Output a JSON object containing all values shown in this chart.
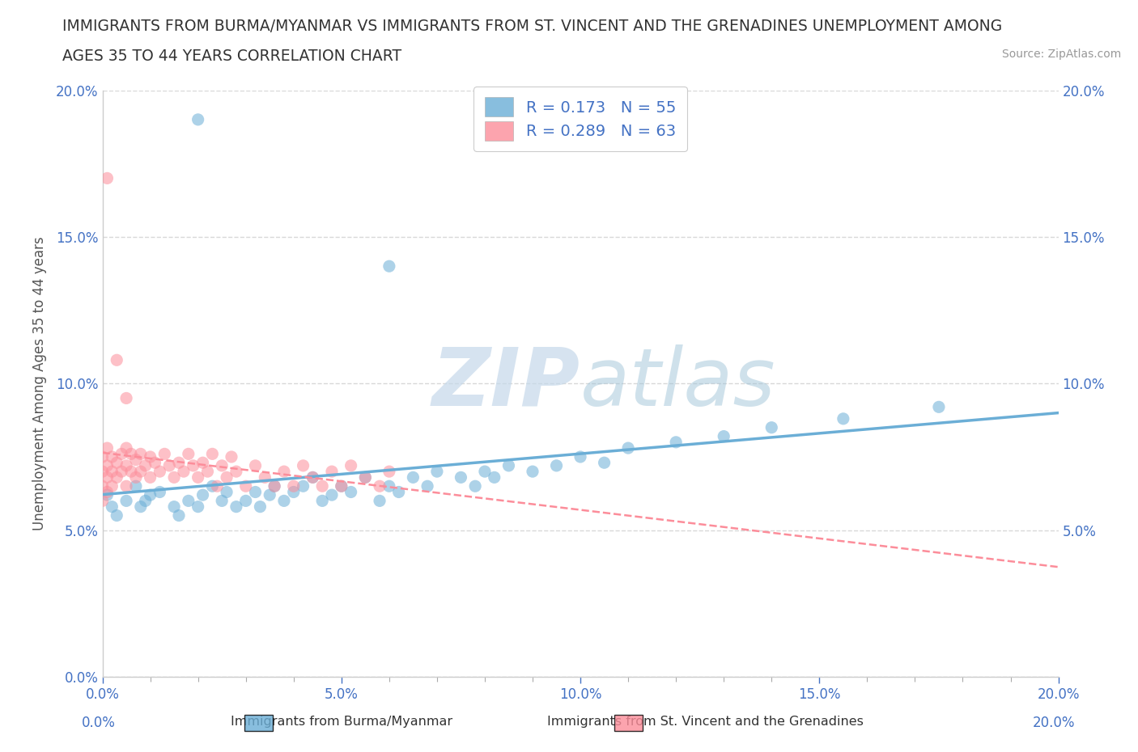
{
  "title_line1": "IMMIGRANTS FROM BURMA/MYANMAR VS IMMIGRANTS FROM ST. VINCENT AND THE GRENADINES UNEMPLOYMENT AMONG",
  "title_line2": "AGES 35 TO 44 YEARS CORRELATION CHART",
  "source": "Source: ZipAtlas.com",
  "ylabel": "Unemployment Among Ages 35 to 44 years",
  "xlim": [
    0.0,
    0.2
  ],
  "ylim": [
    0.0,
    0.2
  ],
  "series1_label": "Immigrants from Burma/Myanmar",
  "series1_color": "#6baed6",
  "series1_R": 0.173,
  "series1_N": 55,
  "series2_label": "Immigrants from St. Vincent and the Grenadines",
  "series2_color": "#fc8d9a",
  "series2_R": 0.289,
  "series2_N": 63,
  "watermark_ZIP": "ZIP",
  "watermark_atlas": "atlas",
  "background_color": "#ffffff",
  "grid_color": "#d8d8d8",
  "tick_color": "#4472c4",
  "legend_R_color": "#4472c4",
  "title_color": "#333333",
  "source_color": "#999999",
  "series1_x": [
    0.001,
    0.002,
    0.003,
    0.005,
    0.007,
    0.008,
    0.009,
    0.01,
    0.012,
    0.015,
    0.016,
    0.018,
    0.02,
    0.021,
    0.023,
    0.025,
    0.026,
    0.028,
    0.03,
    0.032,
    0.033,
    0.035,
    0.036,
    0.038,
    0.04,
    0.042,
    0.044,
    0.046,
    0.048,
    0.05,
    0.052,
    0.055,
    0.058,
    0.06,
    0.062,
    0.065,
    0.068,
    0.07,
    0.075,
    0.078,
    0.08,
    0.082,
    0.085,
    0.09,
    0.095,
    0.1,
    0.105,
    0.11,
    0.12,
    0.13,
    0.14,
    0.155,
    0.175,
    0.02,
    0.06
  ],
  "series1_y": [
    0.062,
    0.058,
    0.055,
    0.06,
    0.065,
    0.058,
    0.06,
    0.062,
    0.063,
    0.058,
    0.055,
    0.06,
    0.058,
    0.062,
    0.065,
    0.06,
    0.063,
    0.058,
    0.06,
    0.063,
    0.058,
    0.062,
    0.065,
    0.06,
    0.063,
    0.065,
    0.068,
    0.06,
    0.062,
    0.065,
    0.063,
    0.068,
    0.06,
    0.065,
    0.063,
    0.068,
    0.065,
    0.07,
    0.068,
    0.065,
    0.07,
    0.068,
    0.072,
    0.07,
    0.072,
    0.075,
    0.073,
    0.078,
    0.08,
    0.082,
    0.085,
    0.088,
    0.092,
    0.19,
    0.14
  ],
  "series2_x": [
    0.0,
    0.0,
    0.0,
    0.0,
    0.001,
    0.001,
    0.001,
    0.001,
    0.002,
    0.002,
    0.002,
    0.003,
    0.003,
    0.004,
    0.004,
    0.005,
    0.005,
    0.005,
    0.006,
    0.006,
    0.007,
    0.007,
    0.008,
    0.008,
    0.009,
    0.01,
    0.01,
    0.011,
    0.012,
    0.013,
    0.014,
    0.015,
    0.016,
    0.017,
    0.018,
    0.019,
    0.02,
    0.021,
    0.022,
    0.023,
    0.024,
    0.025,
    0.026,
    0.027,
    0.028,
    0.03,
    0.032,
    0.034,
    0.036,
    0.038,
    0.04,
    0.042,
    0.044,
    0.046,
    0.048,
    0.05,
    0.052,
    0.055,
    0.058,
    0.06,
    0.001,
    0.003,
    0.005
  ],
  "series2_y": [
    0.06,
    0.065,
    0.07,
    0.075,
    0.063,
    0.068,
    0.072,
    0.078,
    0.065,
    0.07,
    0.075,
    0.068,
    0.073,
    0.07,
    0.076,
    0.065,
    0.072,
    0.078,
    0.07,
    0.076,
    0.068,
    0.074,
    0.07,
    0.076,
    0.072,
    0.068,
    0.075,
    0.073,
    0.07,
    0.076,
    0.072,
    0.068,
    0.073,
    0.07,
    0.076,
    0.072,
    0.068,
    0.073,
    0.07,
    0.076,
    0.065,
    0.072,
    0.068,
    0.075,
    0.07,
    0.065,
    0.072,
    0.068,
    0.065,
    0.07,
    0.065,
    0.072,
    0.068,
    0.065,
    0.07,
    0.065,
    0.072,
    0.068,
    0.065,
    0.07,
    0.17,
    0.108,
    0.095
  ]
}
